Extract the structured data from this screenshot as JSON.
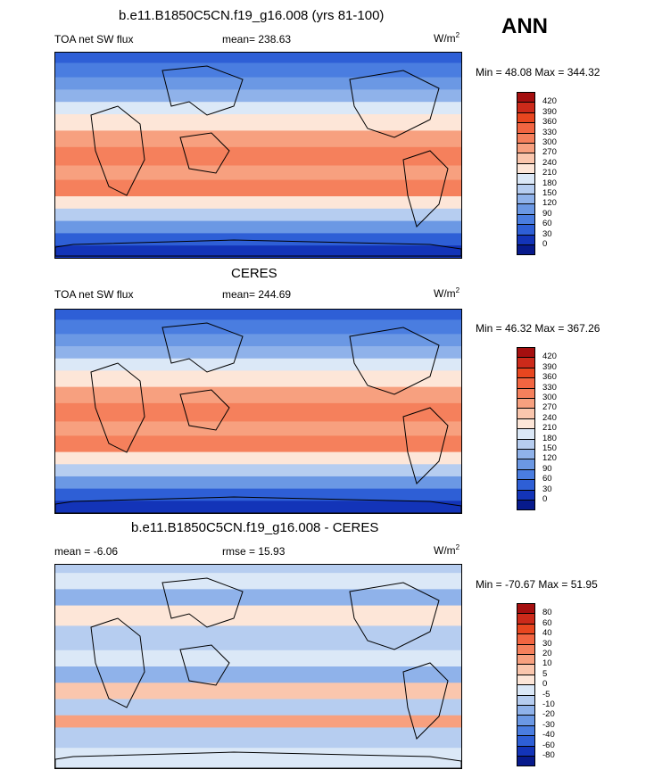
{
  "season": "ANN",
  "panels": [
    {
      "title": "b.e11.B1850C5CN.f19_g16.008 (yrs 81-100)",
      "left_label": "TOA net SW flux",
      "center_label": "mean= 238.63",
      "units_base": "W/m",
      "units_exp": "2",
      "minmax": "Min =  48.08 Max = 344.32",
      "field": "model",
      "colorbar": {
        "levels": [
          "420",
          "390",
          "360",
          "330",
          "300",
          "270",
          "240",
          "210",
          "180",
          "150",
          "120",
          "90",
          "60",
          "30",
          "0"
        ],
        "colors": [
          "#a50f0f",
          "#cc2a1a",
          "#e8461f",
          "#f26541",
          "#f5805c",
          "#f7a07f",
          "#fac6ad",
          "#fde6d8",
          "#dbe8f7",
          "#b6cdf0",
          "#8fb2ea",
          "#6b98e4",
          "#4a7de0",
          "#2e5fd6",
          "#1334b8",
          "#071a8c"
        ]
      }
    },
    {
      "title": "CERES",
      "left_label": "TOA net SW flux",
      "center_label": "mean= 244.69",
      "units_base": "W/m",
      "units_exp": "2",
      "minmax": "Min =  46.32 Max = 367.26",
      "field": "obs",
      "colorbar": {
        "levels": [
          "420",
          "390",
          "360",
          "330",
          "300",
          "270",
          "240",
          "210",
          "180",
          "150",
          "120",
          "90",
          "60",
          "30",
          "0"
        ],
        "colors": [
          "#a50f0f",
          "#cc2a1a",
          "#e8461f",
          "#f26541",
          "#f5805c",
          "#f7a07f",
          "#fac6ad",
          "#fde6d8",
          "#dbe8f7",
          "#b6cdf0",
          "#8fb2ea",
          "#6b98e4",
          "#4a7de0",
          "#2e5fd6",
          "#1334b8",
          "#071a8c"
        ]
      }
    },
    {
      "title": "b.e11.B1850C5CN.f19_g16.008 - CERES",
      "left_label": "mean =  -6.06",
      "center_label": "rmse =  15.93",
      "units_base": "W/m",
      "units_exp": "2",
      "minmax": "Min = -70.67 Max =  51.95",
      "field": "diff",
      "colorbar": {
        "levels": [
          "80",
          "60",
          "40",
          "30",
          "20",
          "10",
          "5",
          "0",
          "-5",
          "-10",
          "-20",
          "-30",
          "-40",
          "-60",
          "-80"
        ],
        "colors": [
          "#a50f0f",
          "#cc2a1a",
          "#e8461f",
          "#f26541",
          "#f5805c",
          "#f7a07f",
          "#fac6ad",
          "#fde6d8",
          "#dbe8f7",
          "#b6cdf0",
          "#8fb2ea",
          "#6b98e4",
          "#4a7de0",
          "#2e5fd6",
          "#1334b8",
          "#071a8c"
        ]
      }
    }
  ]
}
